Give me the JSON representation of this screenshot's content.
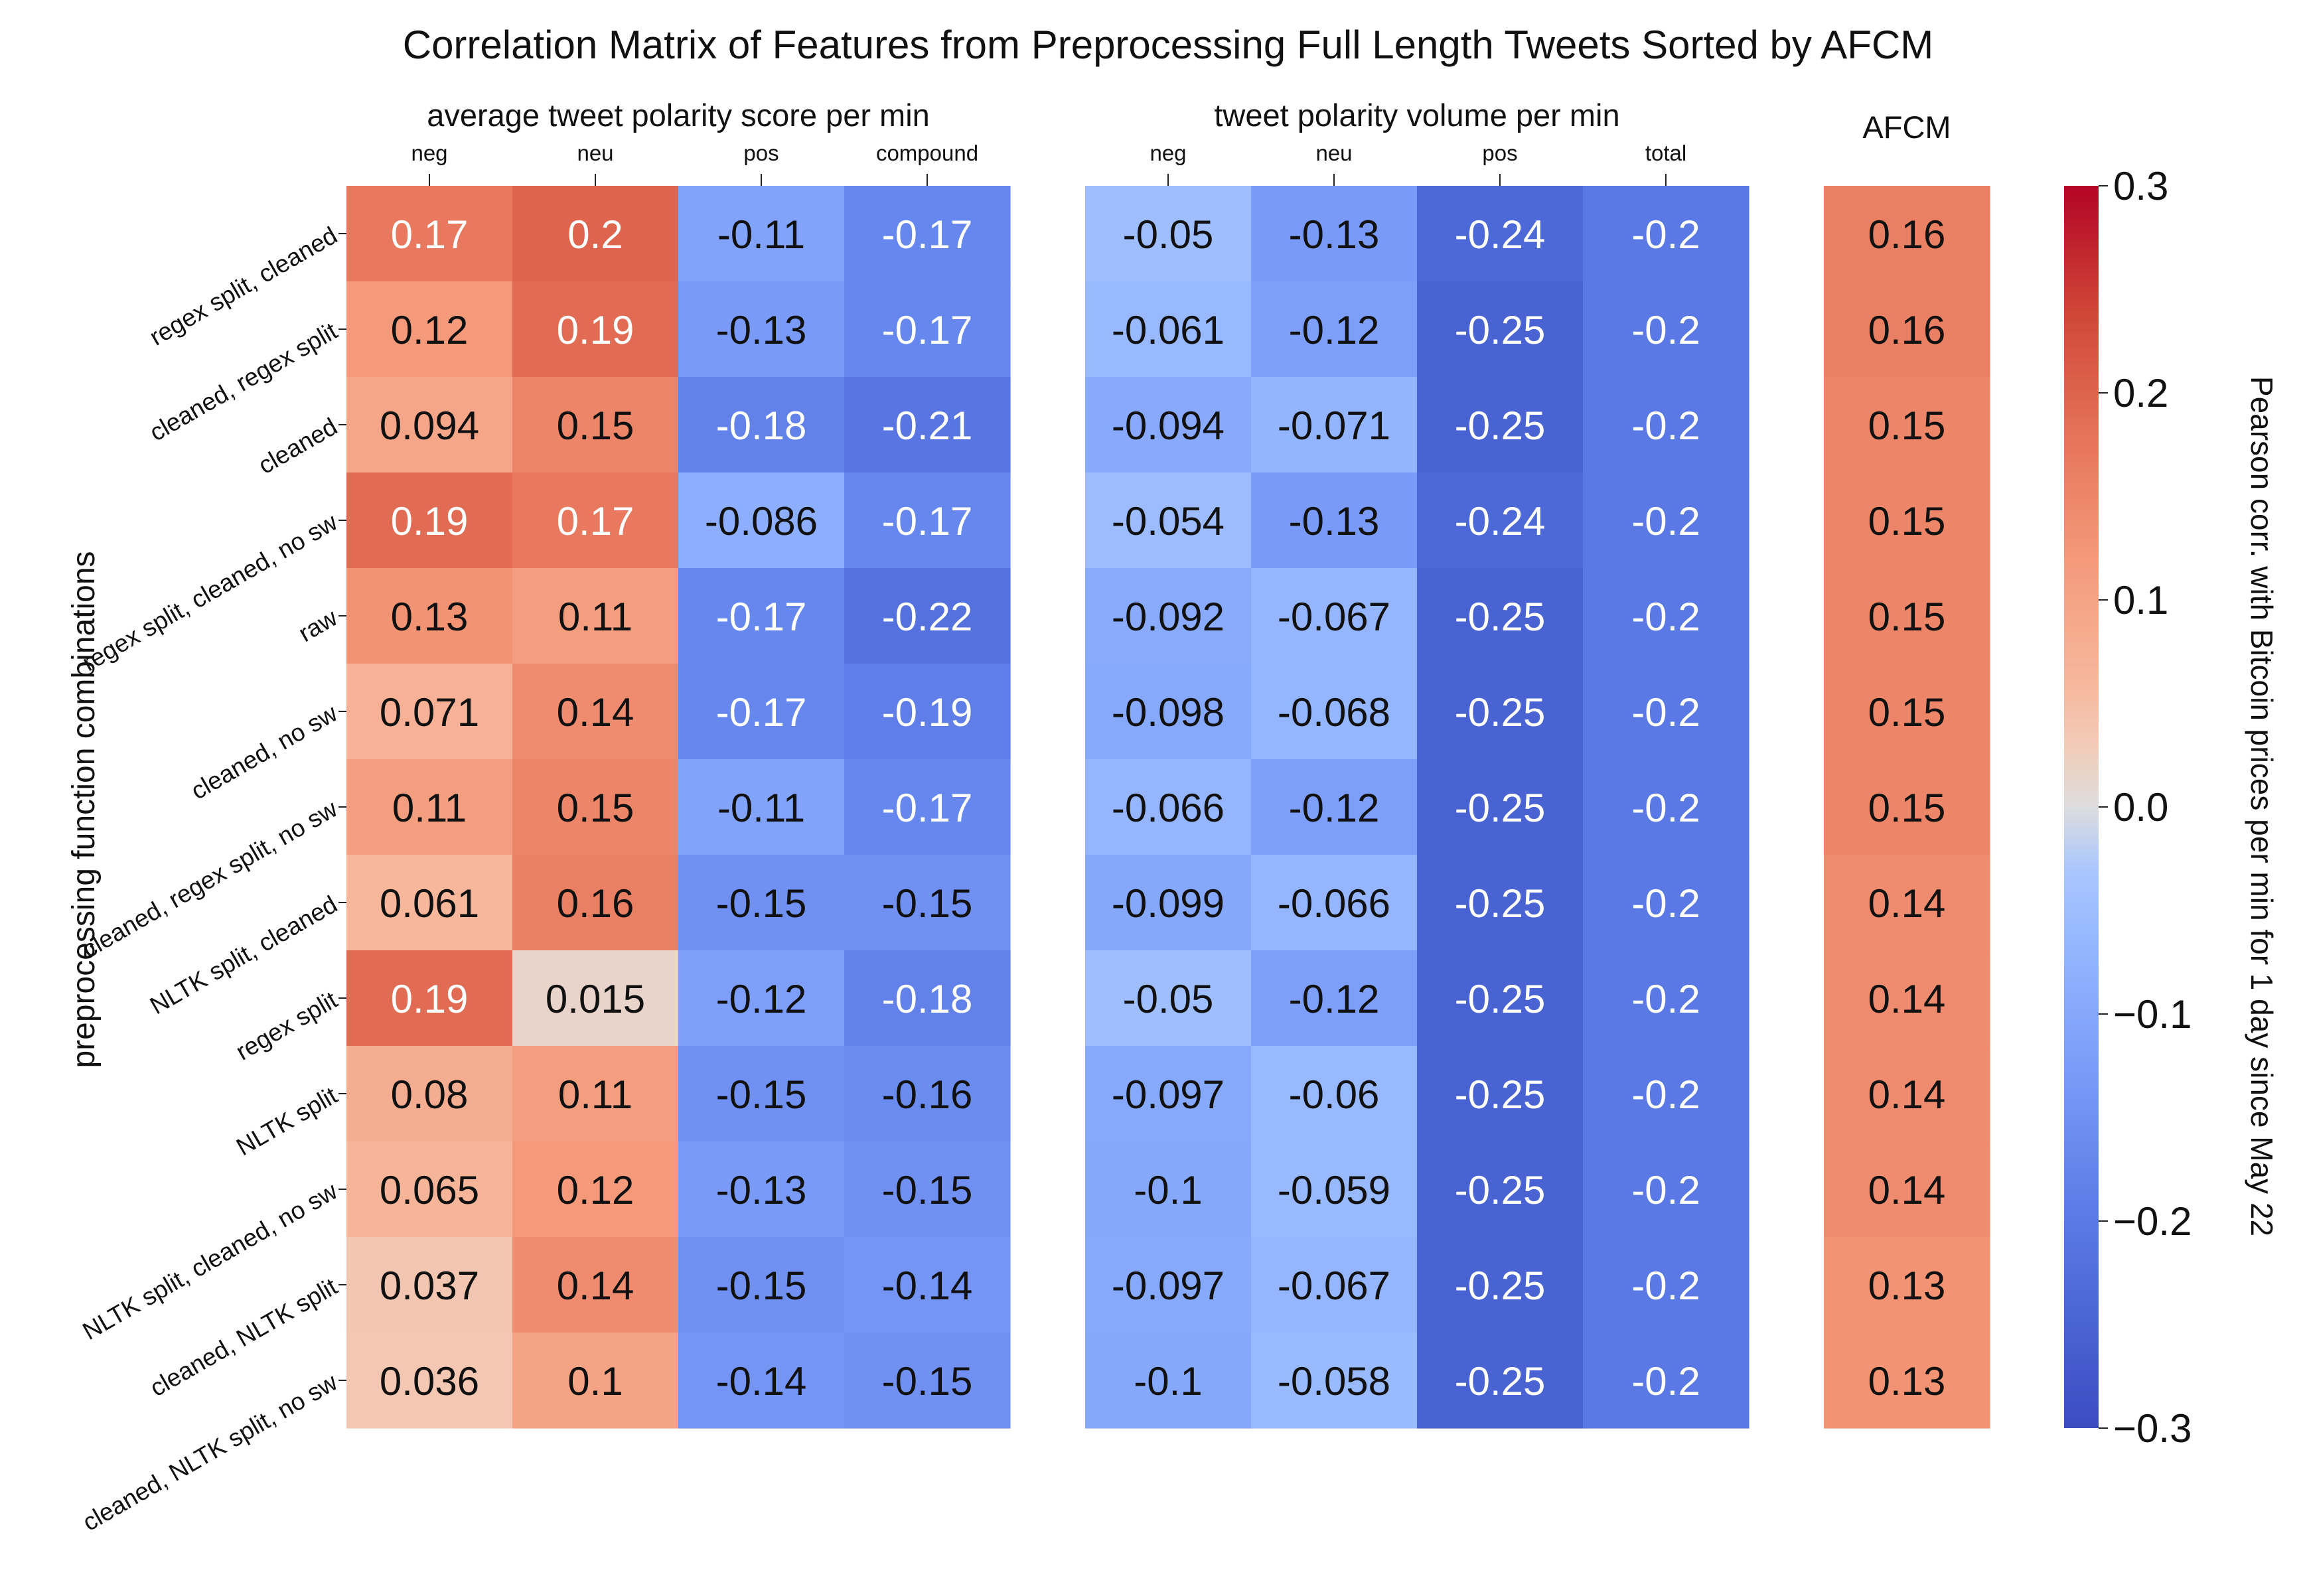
{
  "chart_data": {
    "type": "heatmap",
    "title": "Correlation Matrix of Features from Preprocessing Full Length Tweets Sorted by AFCM",
    "ylabel": "preprocessing function combinations",
    "colorbar": {
      "label": "Pearson corr. with Bitcoin prices per min for 1 day since May 22",
      "range": [
        -0.3,
        0.3
      ],
      "ticks": [
        "0.3",
        "0.2",
        "0.1",
        "0.0",
        "−0.1",
        "−0.2",
        "−0.3"
      ],
      "tick_values": [
        0.3,
        0.2,
        0.1,
        0.0,
        -0.1,
        -0.2,
        -0.3
      ],
      "colormap": "coolwarm"
    },
    "groups": [
      {
        "name": "average tweet polarity score per min",
        "columns": [
          "neg",
          "neu",
          "pos",
          "compound"
        ]
      },
      {
        "name": "tweet polarity volume per min",
        "columns": [
          "neg",
          "neu",
          "pos",
          "total"
        ]
      },
      {
        "name": "AFCM",
        "columns": [
          ""
        ]
      }
    ],
    "rows": [
      "regex split, cleaned",
      "cleaned, regex split",
      "cleaned",
      "regex split, cleaned, no sw",
      "raw",
      "cleaned, no sw",
      "cleaned, regex split, no sw",
      "NLTK split, cleaned",
      "regex split",
      "NLTK split",
      "NLTK split, cleaned, no sw",
      "cleaned, NLTK split",
      "cleaned, NLTK split, no sw"
    ],
    "values": [
      [
        [
          0.17,
          0.2,
          -0.11,
          -0.17
        ],
        [
          -0.05,
          -0.13,
          -0.24,
          -0.2
        ],
        [
          0.16
        ]
      ],
      [
        [
          0.12,
          0.19,
          -0.13,
          -0.17
        ],
        [
          -0.061,
          -0.12,
          -0.25,
          -0.2
        ],
        [
          0.16
        ]
      ],
      [
        [
          0.094,
          0.15,
          -0.18,
          -0.21
        ],
        [
          -0.094,
          -0.071,
          -0.25,
          -0.2
        ],
        [
          0.15
        ]
      ],
      [
        [
          0.19,
          0.17,
          -0.086,
          -0.17
        ],
        [
          -0.054,
          -0.13,
          -0.24,
          -0.2
        ],
        [
          0.15
        ]
      ],
      [
        [
          0.13,
          0.11,
          -0.17,
          -0.22
        ],
        [
          -0.092,
          -0.067,
          -0.25,
          -0.2
        ],
        [
          0.15
        ]
      ],
      [
        [
          0.071,
          0.14,
          -0.17,
          -0.19
        ],
        [
          -0.098,
          -0.068,
          -0.25,
          -0.2
        ],
        [
          0.15
        ]
      ],
      [
        [
          0.11,
          0.15,
          -0.11,
          -0.17
        ],
        [
          -0.066,
          -0.12,
          -0.25,
          -0.2
        ],
        [
          0.15
        ]
      ],
      [
        [
          0.061,
          0.16,
          -0.15,
          -0.15
        ],
        [
          -0.099,
          -0.066,
          -0.25,
          -0.2
        ],
        [
          0.14
        ]
      ],
      [
        [
          0.19,
          0.015,
          -0.12,
          -0.18
        ],
        [
          -0.05,
          -0.12,
          -0.25,
          -0.2
        ],
        [
          0.14
        ]
      ],
      [
        [
          0.08,
          0.11,
          -0.15,
          -0.16
        ],
        [
          -0.097,
          -0.06,
          -0.25,
          -0.2
        ],
        [
          0.14
        ]
      ],
      [
        [
          0.065,
          0.12,
          -0.13,
          -0.15
        ],
        [
          -0.1,
          -0.059,
          -0.25,
          -0.2
        ],
        [
          0.14
        ]
      ],
      [
        [
          0.037,
          0.14,
          -0.15,
          -0.14
        ],
        [
          -0.097,
          -0.067,
          -0.25,
          -0.2
        ],
        [
          0.13
        ]
      ],
      [
        [
          0.036,
          0.1,
          -0.14,
          -0.15
        ],
        [
          -0.1,
          -0.058,
          -0.25,
          -0.2
        ],
        [
          0.13
        ]
      ]
    ]
  }
}
